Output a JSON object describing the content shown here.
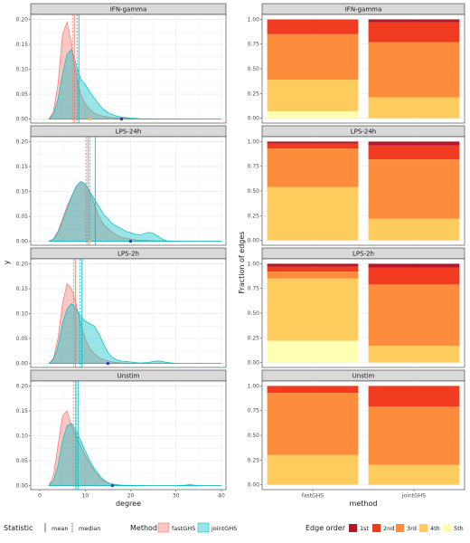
{
  "chart_data": [
    {
      "type": "area",
      "subtype": "density-facets",
      "xlabel": "degree",
      "ylabel": "y",
      "xlim": [
        -2,
        41
      ],
      "ylim": [
        -0.008,
        0.21
      ],
      "xticks": [
        0,
        10,
        20,
        30,
        40
      ],
      "yticks": [
        0.0,
        0.05,
        0.1,
        0.15,
        0.2
      ],
      "ytick_labels": [
        "0.00",
        "0.05",
        "0.10",
        "0.15",
        "0.20"
      ],
      "grid": true,
      "series_colors": {
        "fastGHS": "#f8766d",
        "jointGHS": "#00bfc4"
      },
      "panels": [
        {
          "label": "IFN-gamma",
          "series": [
            {
              "name": "fastGHS",
              "x": [
                2,
                3,
                4,
                5,
                6,
                7,
                8,
                9,
                10,
                11,
                12,
                13,
                14,
                15,
                16,
                18,
                20,
                22,
                25,
                30,
                35,
                40
              ],
              "y": [
                0,
                0.015,
                0.07,
                0.17,
                0.195,
                0.15,
                0.09,
                0.05,
                0.03,
                0.02,
                0.012,
                0.008,
                0.006,
                0.004,
                0.003,
                0.002,
                0.001,
                0.0005,
                0.0003,
                0,
                0,
                0
              ],
              "mean": 7.6,
              "median": 7.2
            },
            {
              "name": "jointGHS",
              "x": [
                2,
                3,
                4,
                5,
                6,
                7,
                8,
                9,
                10,
                11,
                12,
                13,
                14,
                15,
                16,
                17,
                18,
                20,
                22,
                25,
                30,
                35,
                40
              ],
              "y": [
                0,
                0.01,
                0.04,
                0.09,
                0.13,
                0.14,
                0.11,
                0.08,
                0.07,
                0.055,
                0.042,
                0.03,
                0.02,
                0.013,
                0.009,
                0.006,
                0.004,
                0.002,
                0.001,
                0.0005,
                0.0002,
                0.0001,
                0
              ],
              "mean": 8.6,
              "median": 8.2
            }
          ],
          "points": [
            {
              "x": 11,
              "y": 0,
              "color": "#fdae61"
            },
            {
              "x": 18,
              "y": 0,
              "color": "#2b2bc7"
            }
          ]
        },
        {
          "label": "LPS-24h",
          "series": [
            {
              "name": "fastGHS",
              "x": [
                2,
                3,
                4,
                5,
                6,
                7,
                8,
                9,
                10,
                11,
                12,
                13,
                14,
                15,
                16,
                17,
                18,
                20,
                22,
                25,
                30,
                35,
                40
              ],
              "y": [
                0,
                0.005,
                0.02,
                0.045,
                0.07,
                0.09,
                0.11,
                0.12,
                0.115,
                0.1,
                0.075,
                0.05,
                0.035,
                0.025,
                0.018,
                0.012,
                0.008,
                0.004,
                0.002,
                0.001,
                0,
                0,
                0
              ],
              "mean": 10.6,
              "median": 10.2
            },
            {
              "name": "jointGHS",
              "x": [
                2,
                3,
                4,
                5,
                6,
                7,
                8,
                9,
                10,
                11,
                12,
                13,
                14,
                15,
                16,
                17,
                18,
                19,
                20,
                21,
                22,
                23,
                24,
                25,
                26,
                27,
                28,
                30,
                35,
                40
              ],
              "y": [
                0,
                0.004,
                0.018,
                0.04,
                0.065,
                0.09,
                0.11,
                0.12,
                0.115,
                0.1,
                0.085,
                0.07,
                0.055,
                0.045,
                0.035,
                0.03,
                0.025,
                0.02,
                0.017,
                0.014,
                0.013,
                0.015,
                0.018,
                0.016,
                0.01,
                0.004,
                0.001,
                0,
                0,
                0
              ],
              "mean": 12.2,
              "median": 11.0
            }
          ],
          "points": [
            {
              "x": 11,
              "y": 0,
              "color": "#fdae61"
            },
            {
              "x": 20,
              "y": 0,
              "color": "#2b2bc7"
            }
          ]
        },
        {
          "label": "LPS-2h",
          "series": [
            {
              "name": "fastGHS",
              "x": [
                2,
                3,
                4,
                5,
                6,
                7,
                8,
                9,
                10,
                11,
                12,
                13,
                14,
                15,
                16,
                18,
                20,
                25,
                30,
                35,
                40
              ],
              "y": [
                0,
                0.01,
                0.05,
                0.12,
                0.16,
                0.15,
                0.12,
                0.08,
                0.05,
                0.03,
                0.02,
                0.012,
                0.008,
                0.005,
                0.003,
                0.001,
                0.0005,
                0,
                0,
                0,
                0
              ],
              "mean": 7.9,
              "median": 7.5
            },
            {
              "name": "jointGHS",
              "x": [
                2,
                3,
                4,
                5,
                6,
                7,
                8,
                9,
                10,
                11,
                12,
                13,
                14,
                15,
                16,
                17,
                18,
                20,
                22,
                24,
                25,
                26,
                27,
                28,
                30,
                35,
                40
              ],
              "y": [
                0,
                0.008,
                0.035,
                0.08,
                0.11,
                0.12,
                0.11,
                0.095,
                0.085,
                0.08,
                0.075,
                0.06,
                0.04,
                0.022,
                0.012,
                0.007,
                0.005,
                0.003,
                0.001,
                0.002,
                0.004,
                0.005,
                0.004,
                0.002,
                0,
                0,
                0
              ],
              "mean": 9.3,
              "median": 8.8
            }
          ],
          "points": [
            {
              "x": 15,
              "y": 0,
              "color": "#2b2bc7"
            }
          ]
        },
        {
          "label": "Unstim",
          "series": [
            {
              "name": "fastGHS",
              "x": [
                2,
                3,
                4,
                5,
                6,
                7,
                8,
                9,
                10,
                11,
                12,
                13,
                14,
                15,
                16,
                18,
                20,
                25,
                30,
                35,
                40
              ],
              "y": [
                0,
                0.02,
                0.08,
                0.14,
                0.15,
                0.12,
                0.1,
                0.08,
                0.06,
                0.045,
                0.03,
                0.018,
                0.01,
                0.006,
                0.003,
                0.001,
                0.0005,
                0,
                0,
                0,
                0
              ],
              "mean": 7.9,
              "median": 7.4
            },
            {
              "name": "jointGHS",
              "x": [
                2,
                3,
                4,
                5,
                6,
                7,
                8,
                9,
                10,
                11,
                12,
                13,
                14,
                15,
                16,
                17,
                18,
                20,
                22,
                25,
                30,
                32,
                33,
                34,
                35,
                38,
                40
              ],
              "y": [
                0,
                0.01,
                0.04,
                0.09,
                0.12,
                0.125,
                0.11,
                0.09,
                0.07,
                0.05,
                0.035,
                0.022,
                0.012,
                0.006,
                0.003,
                0.0015,
                0.001,
                0.0005,
                0.0002,
                0.0001,
                0.0001,
                0.001,
                0.002,
                0.001,
                0.0002,
                0.0001,
                0
              ],
              "mean": 8.4,
              "median": 8.0
            }
          ],
          "points": [
            {
              "x": 16,
              "y": 0,
              "color": "#2b2bc7"
            }
          ]
        }
      ]
    },
    {
      "type": "bar",
      "subtype": "stacked-fraction-facets",
      "xlabel": "method",
      "ylabel": "Fraction of edges",
      "categories": [
        "fastGHS",
        "jointGHS"
      ],
      "ylim": [
        -0.05,
        1.05
      ],
      "yticks": [
        0.0,
        0.25,
        0.5,
        0.75,
        1.0
      ],
      "ytick_labels": [
        "0.00",
        "0.25",
        "0.50",
        "0.75",
        "1.00"
      ],
      "grid": true,
      "stack_order_bottom_to_top": [
        "5th",
        "4th",
        "3rd",
        "2nd",
        "1st"
      ],
      "colors": {
        "1st": "#b2182b",
        "2nd": "#f03b20",
        "3rd": "#fd8d3c",
        "4th": "#fecc5c",
        "5th": "#ffffb2"
      },
      "panels": [
        {
          "label": "IFN-gamma",
          "stacks": [
            {
              "method": "fastGHS",
              "5th": 0.07,
              "4th": 0.32,
              "3rd": 0.46,
              "2nd": 0.15,
              "1st": 0.0
            },
            {
              "method": "jointGHS",
              "5th": 0.0,
              "4th": 0.21,
              "3rd": 0.56,
              "2nd": 0.2,
              "1st": 0.03
            }
          ]
        },
        {
          "label": "LPS-24h",
          "stacks": [
            {
              "method": "fastGHS",
              "5th": 0.0,
              "4th": 0.54,
              "3rd": 0.39,
              "2nd": 0.05,
              "1st": 0.02
            },
            {
              "method": "jointGHS",
              "5th": 0.0,
              "4th": 0.22,
              "3rd": 0.6,
              "2nd": 0.14,
              "1st": 0.04
            }
          ]
        },
        {
          "label": "LPS-2h",
          "stacks": [
            {
              "method": "fastGHS",
              "5th": 0.22,
              "4th": 0.63,
              "3rd": 0.07,
              "2nd": 0.05,
              "1st": 0.03
            },
            {
              "method": "jointGHS",
              "5th": 0.0,
              "4th": 0.17,
              "3rd": 0.62,
              "2nd": 0.17,
              "1st": 0.04
            }
          ]
        },
        {
          "label": "Unstim",
          "stacks": [
            {
              "method": "fastGHS",
              "5th": 0.0,
              "4th": 0.3,
              "3rd": 0.63,
              "2nd": 0.07,
              "1st": 0.0
            },
            {
              "method": "jointGHS",
              "5th": 0.0,
              "4th": 0.2,
              "3rd": 0.59,
              "2nd": 0.21,
              "1st": 0.0
            }
          ]
        }
      ]
    }
  ],
  "legends": {
    "statistic": {
      "title": "Statistic",
      "items": [
        {
          "label": "mean",
          "dash": "solid"
        },
        {
          "label": "median",
          "dash": "dashed"
        }
      ]
    },
    "method": {
      "title": "Method",
      "items": [
        {
          "label": "fastGHS",
          "color": "#f8766d"
        },
        {
          "label": "jointGHS",
          "color": "#00bfc4"
        }
      ]
    },
    "edge_order": {
      "title": "Edge order",
      "items": [
        {
          "label": "1st",
          "color": "#b2182b"
        },
        {
          "label": "2nd",
          "color": "#f03b20"
        },
        {
          "label": "3rd",
          "color": "#fd8d3c"
        },
        {
          "label": "4th",
          "color": "#fecc5c"
        },
        {
          "label": "5th",
          "color": "#ffffb2"
        }
      ]
    }
  }
}
